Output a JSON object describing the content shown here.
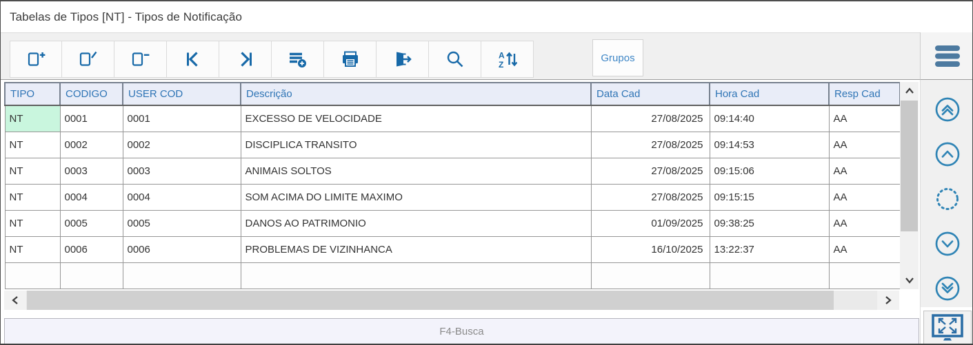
{
  "window": {
    "title": "Tabelas de Tipos [NT] - Tipos de Notificação"
  },
  "toolbar": {
    "buttons": [
      {
        "name": "add-record-button",
        "icon": "document-add-icon"
      },
      {
        "name": "edit-record-button",
        "icon": "document-edit-icon"
      },
      {
        "name": "delete-record-button",
        "icon": "document-remove-icon"
      },
      {
        "name": "first-record-button",
        "icon": "go-first-icon"
      },
      {
        "name": "last-record-button",
        "icon": "go-last-icon"
      },
      {
        "name": "insert-list-button",
        "icon": "list-add-icon"
      },
      {
        "name": "print-button",
        "icon": "printer-icon"
      },
      {
        "name": "exit-button",
        "icon": "exit-door-icon"
      },
      {
        "name": "search-button",
        "icon": "search-icon"
      },
      {
        "name": "sort-button",
        "icon": "sort-az-icon"
      }
    ],
    "grupos_label": "Grupos",
    "menu_icon": "hamburger-menu-icon"
  },
  "table": {
    "columns": [
      {
        "key": "tipo",
        "label": "TIPO"
      },
      {
        "key": "codigo",
        "label": "CODIGO"
      },
      {
        "key": "user_cod",
        "label": "USER COD"
      },
      {
        "key": "descricao",
        "label": "Descrição"
      },
      {
        "key": "data_cad",
        "label": "Data Cad"
      },
      {
        "key": "hora_cad",
        "label": "Hora Cad"
      },
      {
        "key": "resp_cad",
        "label": "Resp Cad"
      }
    ],
    "rows": [
      {
        "tipo": "NT",
        "codigo": "0001",
        "user_cod": "0001",
        "descricao": "EXCESSO DE VELOCIDADE",
        "data_cad": "27/08/2025",
        "hora_cad": "09:14:40",
        "resp_cad": "AA"
      },
      {
        "tipo": "NT",
        "codigo": "0002",
        "user_cod": "0002",
        "descricao": "DISCIPLICA TRANSITO",
        "data_cad": "27/08/2025",
        "hora_cad": "09:14:53",
        "resp_cad": "AA"
      },
      {
        "tipo": "NT",
        "codigo": "0003",
        "user_cod": "0003",
        "descricao": "ANIMAIS SOLTOS",
        "data_cad": "27/08/2025",
        "hora_cad": "09:15:06",
        "resp_cad": "AA"
      },
      {
        "tipo": "NT",
        "codigo": "0004",
        "user_cod": "0004",
        "descricao": "SOM ACIMA DO LIMITE MAXIMO",
        "data_cad": "27/08/2025",
        "hora_cad": "09:15:15",
        "resp_cad": "AA"
      },
      {
        "tipo": "NT",
        "codigo": "0005",
        "user_cod": "0005",
        "descricao": "DANOS AO PATRIMONIO",
        "data_cad": "01/09/2025",
        "hora_cad": "09:38:25",
        "resp_cad": "AA"
      },
      {
        "tipo": "NT",
        "codigo": "0006",
        "user_cod": "0006",
        "descricao": "PROBLEMAS DE VIZINHANCA",
        "data_cad": "16/10/2025",
        "hora_cad": "13:22:37",
        "resp_cad": "AA"
      }
    ],
    "trailing_empty_rows": 1,
    "selected_cell": {
      "row": 0,
      "column": "tipo"
    },
    "right_aligned_columns": [
      "data_cad"
    ]
  },
  "sidebar": {
    "buttons": [
      {
        "name": "scroll-top-button",
        "icon": "double-chevron-up-circle-icon"
      },
      {
        "name": "scroll-up-button",
        "icon": "chevron-up-circle-icon"
      },
      {
        "name": "record-position-button",
        "icon": "dotted-circle-icon"
      },
      {
        "name": "scroll-down-button",
        "icon": "chevron-down-circle-icon"
      },
      {
        "name": "scroll-bottom-button",
        "icon": "double-chevron-down-circle-icon"
      },
      {
        "name": "fullscreen-button",
        "icon": "fullscreen-monitor-icon"
      }
    ]
  },
  "status_bar": {
    "text": "F4-Busca"
  },
  "colors": {
    "accent_blue": "#1769a8",
    "header_text_blue": "#2e74b5",
    "header_bg": "#e9edf8",
    "selected_cell_green": "#c9f6de",
    "sidebar_icon_blue": "#2f84b5",
    "menu_icon_blue": "#4d7aa0"
  }
}
